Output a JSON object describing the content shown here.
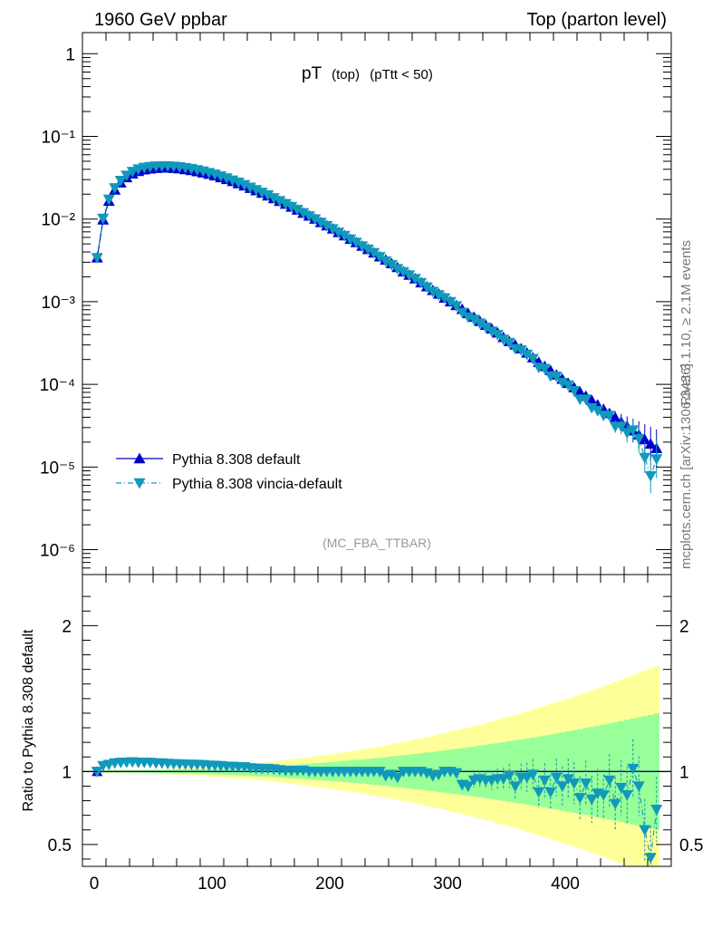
{
  "header": {
    "left": "1960 GeV ppbar",
    "right": "Top (parton level)"
  },
  "side": {
    "rivet": "Rivet 3.1.10, ≥ 2.1M events",
    "mcplots": "mcplots.cern.ch [arXiv:1306.3436]"
  },
  "analysis": "(MC_FBA_TTBAR)",
  "title": {
    "main": "pT",
    "sub1": "(top)",
    "sub2": "(pTtt < 50)"
  },
  "colors": {
    "pythia": "#0000cc",
    "vincia": "#1199bb",
    "band_yellow": "#ffff99",
    "band_green": "#99ff99"
  },
  "chart_data": [
    {
      "type": "line",
      "x_scale": "linear",
      "y_scale": "log",
      "xlim": [
        -10,
        490
      ],
      "ylim": [
        5e-07,
        1.8
      ],
      "y_ticks": [
        "1",
        "10⁻¹",
        "10⁻²",
        "10⁻³",
        "10⁻⁴",
        "10⁻⁵",
        "10⁻⁶"
      ],
      "legend_position": "bottom-left",
      "x": [
        2.5,
        7.5,
        12.5,
        17.5,
        22.5,
        27.5,
        32.5,
        37.5,
        42.5,
        47.5,
        52.5,
        57.5,
        62.5,
        67.5,
        72.5,
        77.5,
        82.5,
        87.5,
        92.5,
        97.5,
        102.5,
        107.5,
        112.5,
        117.5,
        122.5,
        127.5,
        132.5,
        137.5,
        142.5,
        147.5,
        152.5,
        157.5,
        162.5,
        167.5,
        172.5,
        177.5,
        182.5,
        187.5,
        192.5,
        197.5,
        202.5,
        207.5,
        212.5,
        217.5,
        222.5,
        227.5,
        232.5,
        237.5,
        242.5,
        247.5,
        252.5,
        257.5,
        262.5,
        267.5,
        272.5,
        277.5,
        282.5,
        287.5,
        292.5,
        297.5,
        302.5,
        307.5,
        312.5,
        317.5,
        322.5,
        327.5,
        332.5,
        337.5,
        342.5,
        347.5,
        352.5,
        357.5,
        362.5,
        367.5,
        372.5,
        377.5,
        382.5,
        387.5,
        392.5,
        397.5,
        402.5,
        407.5,
        412.5,
        417.5,
        422.5,
        427.5,
        432.5,
        437.5,
        442.5,
        447.5,
        452.5,
        457.5,
        462.5,
        467.5,
        472.5,
        477.5
      ],
      "series": [
        {
          "name": "Pythia 8.308 default",
          "marker": "triangle-up",
          "line": "solid",
          "values": [
            0.0034,
            0.0098,
            0.0165,
            0.0225,
            0.0275,
            0.0318,
            0.0352,
            0.0378,
            0.0395,
            0.0405,
            0.0412,
            0.0415,
            0.0415,
            0.0412,
            0.0406,
            0.0398,
            0.0388,
            0.0376,
            0.0363,
            0.0349,
            0.0334,
            0.0318,
            0.0302,
            0.0285,
            0.0269,
            0.0252,
            0.0236,
            0.0221,
            0.0206,
            0.0191,
            0.0177,
            0.0164,
            0.0152,
            0.014,
            0.0129,
            0.0118,
            0.0109,
            0.01,
            0.0091,
            0.0083,
            0.0076,
            0.0069,
            0.0063,
            0.0057,
            0.0052,
            0.0047,
            0.0043,
            0.0039,
            0.0035,
            0.0032,
            0.0029,
            0.0026,
            0.0023,
            0.0021,
            0.0019,
            0.0017,
            0.00152,
            0.00137,
            0.00124,
            0.00111,
            0.001,
            0.0009,
            0.00081,
            0.00072,
            0.00065,
            0.00058,
            0.00052,
            0.00047,
            0.00042,
            0.00037,
            0.00033,
            0.0003,
            0.00027,
            0.00024,
            0.00021,
            0.000185,
            0.000165,
            0.000147,
            0.00013,
            0.000116,
            0.000103,
            9.15e-05,
            8.1e-05,
            7.2e-05,
            6.4e-05,
            5.65e-05,
            5e-05,
            4.45e-05,
            3.95e-05,
            3.5e-05,
            3.1e-05,
            2.75e-05,
            2.45e-05,
            2.15e-05,
            1.9e-05,
            1.68e-05
          ]
        },
        {
          "name": "Pythia 8.308 vincia-default",
          "marker": "triangle-down",
          "line": "dash-dot",
          "values": [
            0.0034,
            0.0102,
            0.0173,
            0.0238,
            0.0292,
            0.0338,
            0.0375,
            0.0402,
            0.042,
            0.043,
            0.0436,
            0.0439,
            0.0438,
            0.0434,
            0.0427,
            0.0418,
            0.0407,
            0.0394,
            0.038,
            0.0364,
            0.0348,
            0.0331,
            0.0313,
            0.0295,
            0.0278,
            0.026,
            0.0242,
            0.0226,
            0.021,
            0.0195,
            0.018,
            0.0166,
            0.0153,
            0.0141,
            0.013,
            0.0119,
            0.0109,
            0.01,
            0.0091,
            0.0083,
            0.0076,
            0.0069,
            0.0063,
            0.0057,
            0.0052,
            0.0047,
            0.0043,
            0.0039,
            0.0035,
            0.0031,
            0.0028,
            0.0025,
            0.0023,
            0.0021,
            0.0019,
            0.0017,
            0.0015,
            0.00133,
            0.00121,
            0.00111,
            0.001,
            0.00089,
            0.00074,
            0.00065,
            0.00061,
            0.00055,
            0.00049,
            0.00044,
            0.0004,
            0.00035,
            0.00032,
            0.00027,
            0.00026,
            0.00023,
            0.000205,
            0.00016,
            0.000155,
            0.000126,
            0.000125,
            0.000105,
            9.8e-05,
            8.4e-05,
            6.6e-05,
            6.6e-05,
            5.2e-05,
            4.8e-05,
            4.2e-05,
            4.2e-05,
            3.1e-05,
            3.1e-05,
            2.6e-05,
            2.8e-05,
            2.2e-05,
            1.3e-05,
            7.8e-06,
            1.25e-05
          ]
        }
      ]
    },
    {
      "type": "line",
      "ylabel": "Ratio to Pythia 8.308 default",
      "ylim": [
        0.35,
        2.35
      ],
      "xlim": [
        -10,
        490
      ],
      "x_ticks": [
        "0",
        "100",
        "200",
        "300",
        "400"
      ],
      "y_ticks": [
        "0.5",
        "1",
        "2"
      ],
      "reference": 1,
      "bands": [
        {
          "name": "yellow",
          "color": "#ffff99"
        },
        {
          "name": "green",
          "color": "#99ff99"
        }
      ],
      "series": [
        {
          "name": "Pythia 8.308 vincia-default",
          "values": [
            1.0,
            1.04,
            1.048,
            1.058,
            1.062,
            1.063,
            1.066,
            1.063,
            1.063,
            1.062,
            1.058,
            1.058,
            1.055,
            1.053,
            1.052,
            1.05,
            1.049,
            1.048,
            1.047,
            1.043,
            1.042,
            1.04,
            1.036,
            1.035,
            1.033,
            1.032,
            1.025,
            1.022,
            1.02,
            1.02,
            1.017,
            1.012,
            1.007,
            1.007,
            1.007,
            1.008,
            1.0,
            1.0,
            1.0,
            1.0,
            1.0,
            1.0,
            1.0,
            1.0,
            1.0,
            1.0,
            1.0,
            1.0,
            1.0,
            0.97,
            0.98,
            0.96,
            1.0,
            1.0,
            1.0,
            1.0,
            0.99,
            0.97,
            0.98,
            1.0,
            1.0,
            0.99,
            0.91,
            0.9,
            0.94,
            0.95,
            0.94,
            0.94,
            0.95,
            0.95,
            0.97,
            0.9,
            0.96,
            0.96,
            0.98,
            0.86,
            0.94,
            0.86,
            0.96,
            0.9,
            0.95,
            0.92,
            0.82,
            0.92,
            0.81,
            0.85,
            0.84,
            0.94,
            0.78,
            0.89,
            0.84,
            1.02,
            0.9,
            0.6,
            0.41,
            0.74
          ]
        }
      ]
    }
  ]
}
